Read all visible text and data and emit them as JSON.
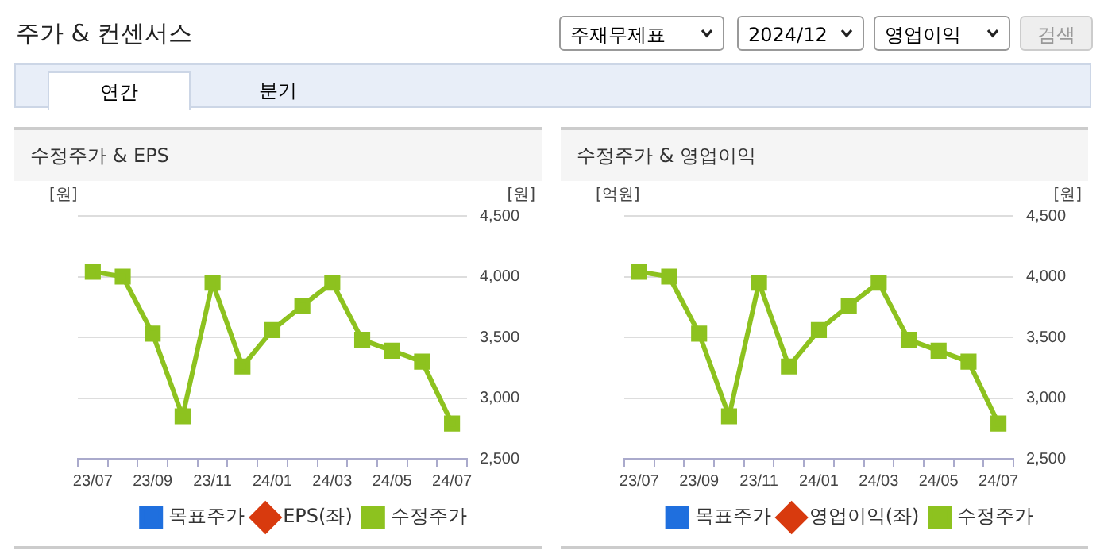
{
  "chart_data": [
    {
      "type": "other",
      "title": "주가 & 컨센서스",
      "annotations": [
        "주재무제표",
        "2024/12",
        "영업이익",
        "검색",
        "연간",
        "분기"
      ]
    },
    {
      "type": "line",
      "title": "수정주가 & EPS",
      "ylabel": "[원]",
      "y2label": "[원]",
      "categories": [
        "23/07",
        null,
        "23/09",
        null,
        "23/11",
        null,
        "24/01",
        null,
        "24/03",
        null,
        "24/05",
        null,
        "24/07"
      ],
      "series": [
        {
          "name": "목표주가",
          "color": "#1f6fde",
          "marker": "square",
          "values": [
            null,
            null,
            null,
            null,
            null,
            null,
            null,
            null,
            null,
            null,
            null,
            null,
            null
          ]
        },
        {
          "name": "EPS(좌)",
          "color": "#d83a0e",
          "marker": "diamond",
          "values": [
            null,
            null,
            null,
            null,
            null,
            null,
            null,
            null,
            null,
            null,
            null,
            null,
            null
          ]
        },
        {
          "name": "수정주가",
          "color": "#8dc21f",
          "marker": "square",
          "axis": "y2",
          "values": [
            4040,
            4000,
            3530,
            2850,
            3950,
            3260,
            3560,
            3760,
            3950,
            3480,
            3390,
            3300,
            2790
          ]
        }
      ],
      "y2lim": [
        2500,
        4500
      ],
      "y2ticks": [
        {
          "value": 2500,
          "label": "2,500"
        },
        {
          "value": 3000,
          "label": "3,000"
        },
        {
          "value": 3500,
          "label": "3,500"
        },
        {
          "value": 4000,
          "label": "4,000"
        },
        {
          "value": 4500,
          "label": "4,500"
        }
      ],
      "grid": "y",
      "legend": "bottom"
    },
    {
      "type": "line",
      "title": "수정주가 & 영업이익",
      "ylabel": "[억원]",
      "y2label": "[원]",
      "categories": [
        "23/07",
        null,
        "23/09",
        null,
        "23/11",
        null,
        "24/01",
        null,
        "24/03",
        null,
        "24/05",
        null,
        "24/07"
      ],
      "series": [
        {
          "name": "목표주가",
          "color": "#1f6fde",
          "marker": "square",
          "values": [
            null,
            null,
            null,
            null,
            null,
            null,
            null,
            null,
            null,
            null,
            null,
            null,
            null
          ]
        },
        {
          "name": "영업이익(좌)",
          "color": "#d83a0e",
          "marker": "diamond",
          "values": [
            null,
            null,
            null,
            null,
            null,
            null,
            null,
            null,
            null,
            null,
            null,
            null,
            null
          ]
        },
        {
          "name": "수정주가",
          "color": "#8dc21f",
          "marker": "square",
          "axis": "y2",
          "values": [
            4040,
            4000,
            3530,
            2850,
            3950,
            3260,
            3560,
            3760,
            3950,
            3480,
            3390,
            3300,
            2790
          ]
        }
      ],
      "y2lim": [
        2500,
        4500
      ],
      "y2ticks": [
        {
          "value": 2500,
          "label": "2,500"
        },
        {
          "value": 3000,
          "label": "3,000"
        },
        {
          "value": 3500,
          "label": "3,500"
        },
        {
          "value": 4000,
          "label": "4,000"
        },
        {
          "value": 4500,
          "label": "4,500"
        }
      ],
      "grid": "y",
      "legend": "bottom"
    }
  ]
}
